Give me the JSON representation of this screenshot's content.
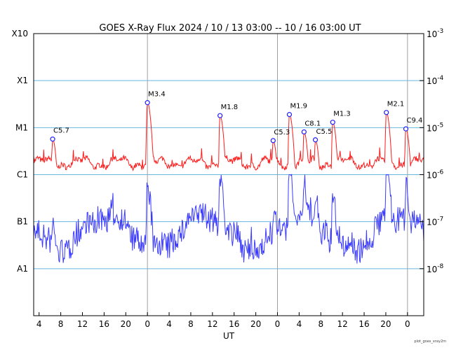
{
  "chart_data": {
    "type": "line",
    "title": "GOES X-Ray Flux   2024 / 10 / 13   03:00 -- 10 / 16   03:00   UT",
    "xlabel": "UT",
    "credit": "plot_goes_xray2m",
    "x_ticks": [
      "4",
      "8",
      "12",
      "16",
      "20",
      "0",
      "4",
      "8",
      "12",
      "16",
      "20",
      "0",
      "4",
      "8",
      "12",
      "16",
      "20",
      "0"
    ],
    "x_range_hours": [
      0,
      72
    ],
    "y_scale": "log",
    "y_range_wm2": [
      1e-09,
      0.001
    ],
    "class_labels": [
      {
        "label": "X10",
        "flux": 0.001
      },
      {
        "label": "X1",
        "flux": 0.0001
      },
      {
        "label": "M1",
        "flux": 1e-05
      },
      {
        "label": "C1",
        "flux": 1e-06
      },
      {
        "label": "B1",
        "flux": 1e-07
      },
      {
        "label": "A1",
        "flux": 1e-08
      }
    ],
    "right_ticks": [
      {
        "base": "10",
        "exp": "-3",
        "flux": 0.001
      },
      {
        "base": "10",
        "exp": "-4",
        "flux": 0.0001
      },
      {
        "base": "10",
        "exp": "-5",
        "flux": 1e-05
      },
      {
        "base": "10",
        "exp": "-6",
        "flux": 1e-06
      },
      {
        "base": "10",
        "exp": "-7",
        "flux": 1e-07
      },
      {
        "base": "10",
        "exp": "-8",
        "flux": 1e-08
      }
    ],
    "day_boundaries_hours": [
      21,
      45,
      69
    ],
    "colors": {
      "long": "#ff1a1a",
      "short": "#3b3bff",
      "grid": "#66b8e0",
      "day": "#a0a0a0",
      "marker": "#2020ff",
      "orange": "#ff9900",
      "purple": "#7a00b0"
    },
    "flares": [
      {
        "label": "C5.7",
        "t": 3.5,
        "flux": 5.7e-06
      },
      {
        "label": "M3.4",
        "t": 21.0,
        "flux": 3.4e-05
      },
      {
        "label": "M1.8",
        "t": 34.4,
        "flux": 1.8e-05
      },
      {
        "label": "C5.3",
        "t": 44.2,
        "flux": 5.3e-06
      },
      {
        "label": "M1.9",
        "t": 47.2,
        "flux": 1.9e-05
      },
      {
        "label": "C8.1",
        "t": 49.9,
        "flux": 8.1e-06
      },
      {
        "label": "C5.5",
        "t": 52.0,
        "flux": 5.5e-06
      },
      {
        "label": "M1.3",
        "t": 55.2,
        "flux": 1.3e-05
      },
      {
        "label": "M2.1",
        "t": 65.1,
        "flux": 2.1e-05
      },
      {
        "label": "C9.4",
        "t": 68.7,
        "flux": 9.4e-06
      }
    ]
  }
}
